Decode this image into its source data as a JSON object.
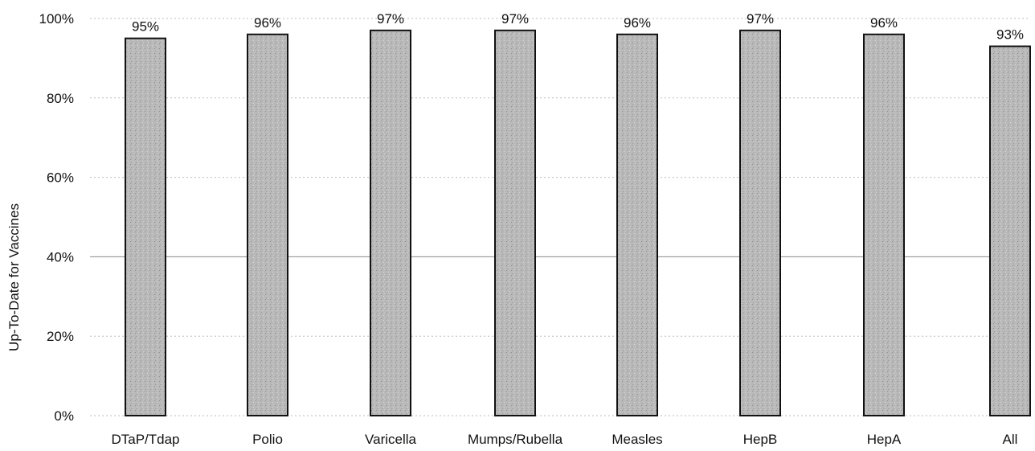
{
  "chart_data": {
    "type": "bar",
    "title": "",
    "xlabel": "",
    "ylabel": "Up-To-Date for Vaccines",
    "ylim": [
      0,
      100
    ],
    "yticks": [
      "0%",
      "20%",
      "40%",
      "60%",
      "80%",
      "100%"
    ],
    "ytick_values": [
      0,
      20,
      40,
      60,
      80,
      100
    ],
    "grid": true,
    "categories": [
      "DTaP/Tdap",
      "Polio",
      "Varicella",
      "Mumps/Rubella",
      "Measles",
      "HepB",
      "HepA",
      "All"
    ],
    "values": [
      95,
      96,
      97,
      97,
      96,
      97,
      96,
      93
    ],
    "data_labels": [
      "95%",
      "96%",
      "97%",
      "97%",
      "96%",
      "97%",
      "96%",
      "93%"
    ],
    "colors": {
      "bar_fill": "#b8b8b8",
      "bar_stroke": "#111111",
      "grid": "#bdbdbd"
    }
  }
}
